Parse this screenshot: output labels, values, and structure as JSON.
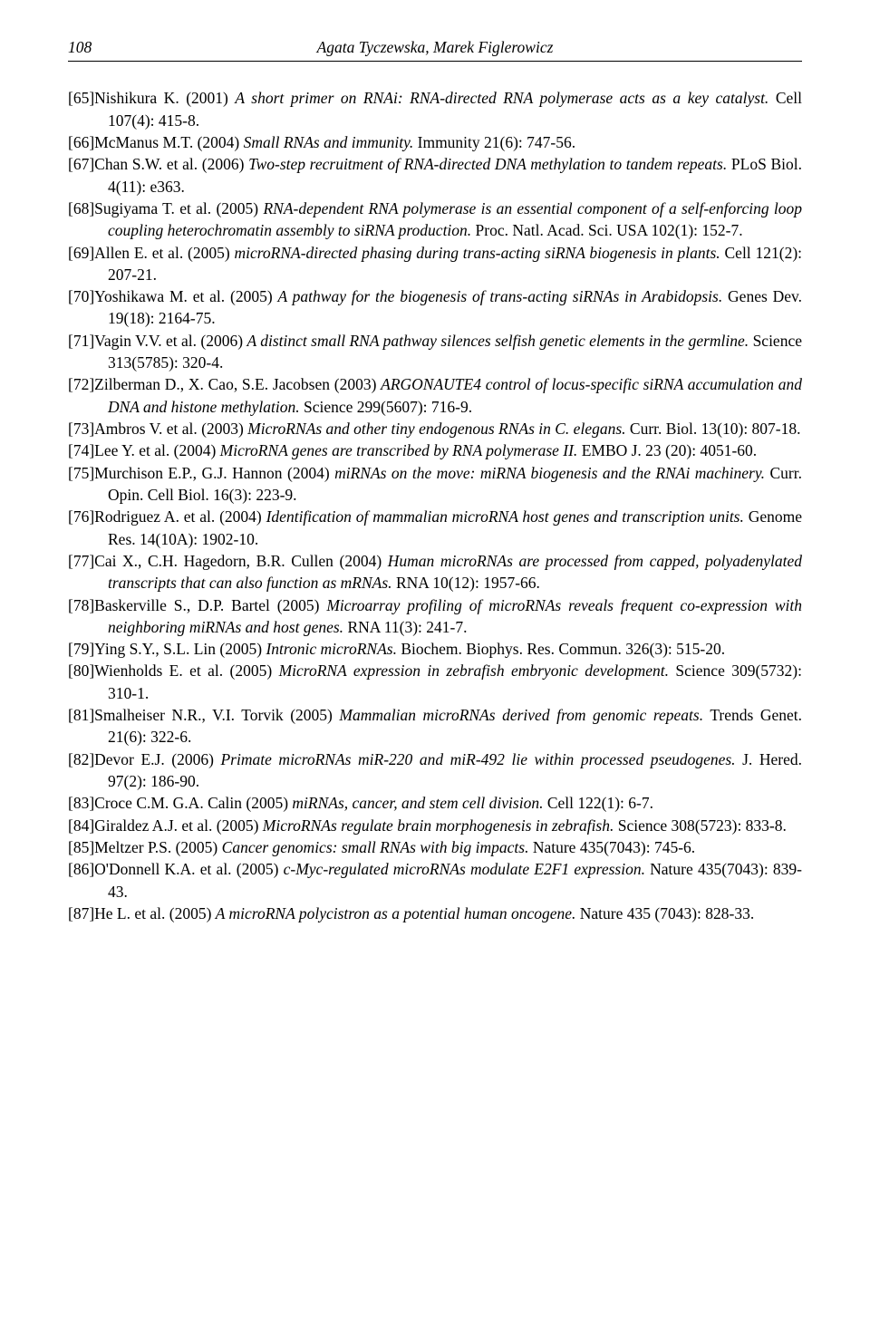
{
  "header": {
    "page": "108",
    "running": "Agata Tyczewska, Marek Figlerowicz"
  },
  "refs": [
    {
      "n": "[65]",
      "a": "Nishikura K. (2001) ",
      "t": "A short primer on RNAi: RNA-directed RNA polymerase acts as a key catalyst.",
      "s": " Cell 107(4): 415-8."
    },
    {
      "n": "[66]",
      "a": "McManus M.T. (2004) ",
      "t": "Small RNAs and immunity.",
      "s": " Immunity 21(6): 747-56."
    },
    {
      "n": "[67]",
      "a": "Chan S.W. et al. (2006) ",
      "t": "Two-step recruitment of RNA-directed DNA methylation to tandem repeats.",
      "s": " PLoS Biol. 4(11): e363."
    },
    {
      "n": "[68]",
      "a": "Sugiyama T. et al. (2005) ",
      "t": "RNA-dependent RNA polymerase is an essential component of a self-enforcing loop coupling heterochromatin assembly to siRNA production.",
      "s": " Proc. Natl. Acad. Sci. USA 102(1): 152-7."
    },
    {
      "n": "[69]",
      "a": "Allen E. et al. (2005) ",
      "t": "microRNA-directed phasing during trans-acting siRNA biogenesis in plants.",
      "s": " Cell 121(2): 207-21."
    },
    {
      "n": "[70]",
      "a": "Yoshikawa M. et al. (2005) ",
      "t": "A pathway for the biogenesis of trans-acting siRNAs in Arabidopsis.",
      "s": " Genes Dev. 19(18): 2164-75."
    },
    {
      "n": "[71]",
      "a": "Vagin V.V. et al. (2006) ",
      "t": "A distinct small RNA pathway silences selfish genetic elements in the germline.",
      "s": " Science 313(5785): 320-4."
    },
    {
      "n": "[72]",
      "a": "Zilberman D., X. Cao, S.E. Jacobsen (2003) ",
      "t": "ARGONAUTE4 control of locus-specific siRNA accumulation and DNA and histone methylation.",
      "s": " Science 299(5607): 716-9."
    },
    {
      "n": "[73]",
      "a": "Ambros V. et al. (2003) ",
      "t": "MicroRNAs and other tiny endogenous RNAs in C. elegans.",
      "s": " Curr. Biol. 13(10): 807-18."
    },
    {
      "n": "[74]",
      "a": "Lee Y. et al. (2004) ",
      "t": "MicroRNA genes are transcribed by RNA polymerase II.",
      "s": " EMBO J. 23 (20): 4051-60."
    },
    {
      "n": "[75]",
      "a": "Murchison E.P., G.J. Hannon (2004) ",
      "t": "miRNAs on the move: miRNA biogenesis and the RNAi machinery.",
      "s": " Curr. Opin. Cell Biol. 16(3): 223-9."
    },
    {
      "n": "[76]",
      "a": "Rodriguez A. et al. (2004) ",
      "t": "Identification of mammalian microRNA host genes and transcription units.",
      "s": " Genome Res. 14(10A): 1902-10."
    },
    {
      "n": "[77]",
      "a": "Cai X., C.H. Hagedorn, B.R. Cullen (2004) ",
      "t": "Human microRNAs are processed from capped, polyadenylated transcripts that can also function as mRNAs.",
      "s": " RNA 10(12): 1957-66."
    },
    {
      "n": "[78]",
      "a": "Baskerville S., D.P. Bartel (2005) ",
      "t": "Microarray profiling of microRNAs reveals frequent co-expression with neighboring miRNAs and host genes.",
      "s": " RNA 11(3): 241-7."
    },
    {
      "n": "[79]",
      "a": "Ying S.Y., S.L. Lin (2005) ",
      "t": "Intronic microRNAs.",
      "s": " Biochem. Biophys. Res. Commun. 326(3): 515-20."
    },
    {
      "n": "[80]",
      "a": "Wienholds E. et al. (2005) ",
      "t": "MicroRNA expression in zebrafish embryonic development.",
      "s": " Science 309(5732): 310-1."
    },
    {
      "n": "[81]",
      "a": "Smalheiser N.R., V.I. Torvik (2005) ",
      "t": "Mammalian microRNAs derived from genomic repeats.",
      "s": " Trends Genet. 21(6): 322-6."
    },
    {
      "n": "[82]",
      "a": "Devor E.J. (2006) ",
      "t": "Primate microRNAs miR-220 and miR-492 lie within processed pseudogenes.",
      "s": " J. Hered. 97(2): 186-90."
    },
    {
      "n": "[83]",
      "a": "Croce C.M. G.A. Calin (2005) ",
      "t": "miRNAs, cancer, and stem cell division.",
      "s": " Cell 122(1): 6-7."
    },
    {
      "n": "[84]",
      "a": "Giraldez A.J. et al. (2005) ",
      "t": "MicroRNAs regulate brain morphogenesis in zebrafish.",
      "s": " Science 308(5723): 833-8."
    },
    {
      "n": "[85]",
      "a": "Meltzer P.S. (2005) ",
      "t": "Cancer genomics: small RNAs with big impacts.",
      "s": " Nature 435(7043): 745-6."
    },
    {
      "n": "[86]",
      "a": "O'Donnell K.A. et al. (2005) ",
      "t": "c-Myc-regulated microRNAs modulate E2F1 expression.",
      "s": " Nature 435(7043): 839-43."
    },
    {
      "n": "[87]",
      "a": "He L. et al. (2005) ",
      "t": "A microRNA polycistron as a potential human oncogene.",
      "s": " Nature 435 (7043): 828-33."
    }
  ]
}
